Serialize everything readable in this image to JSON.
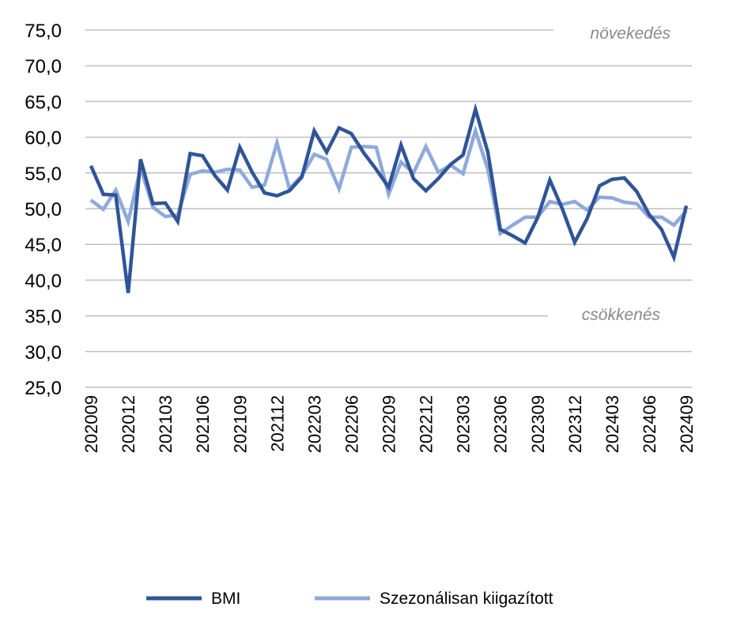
{
  "chart_data": {
    "type": "line",
    "ylim": [
      25,
      75
    ],
    "y_ticks": [
      "75,0",
      "70,0",
      "65,0",
      "60,0",
      "55,0",
      "50,0",
      "45,0",
      "40,0",
      "35,0",
      "30,0",
      "25,0"
    ],
    "x_tick_labels": [
      "202009",
      "202012",
      "202103",
      "202106",
      "202109",
      "202112",
      "202203",
      "202206",
      "202209",
      "202212",
      "202303",
      "202306",
      "202309",
      "202312",
      "202403",
      "202406",
      "202409"
    ],
    "categories": [
      "202009",
      "202010",
      "202011",
      "202012",
      "202101",
      "202102",
      "202103",
      "202104",
      "202105",
      "202106",
      "202107",
      "202108",
      "202109",
      "202110",
      "202111",
      "202112",
      "202201",
      "202202",
      "202203",
      "202204",
      "202205",
      "202206",
      "202207",
      "202208",
      "202209",
      "202210",
      "202211",
      "202212",
      "202301",
      "202302",
      "202303",
      "202304",
      "202305",
      "202306",
      "202307",
      "202308",
      "202309",
      "202310",
      "202311",
      "202312",
      "202401",
      "202402",
      "202403",
      "202404",
      "202405",
      "202406",
      "202407",
      "202408",
      "202409"
    ],
    "grid": true,
    "legend_position": "bottom",
    "annotations": {
      "upper": "növekedés",
      "lower": "csökkenés"
    },
    "series": [
      {
        "name": "BMI",
        "color": "#2f5597",
        "values": [
          56.0,
          52.0,
          51.9,
          38.2,
          56.9,
          50.7,
          50.8,
          48.2,
          57.7,
          57.4,
          54.6,
          52.6,
          58.6,
          55.1,
          52.2,
          51.8,
          52.5,
          54.4,
          60.9,
          57.9,
          61.3,
          60.5,
          57.8,
          55.5,
          53.0,
          58.9,
          54.2,
          52.5,
          54.2,
          56.2,
          57.5,
          63.9,
          57.9,
          47.1,
          46.2,
          45.2,
          48.7,
          54.0,
          50.0,
          45.3,
          48.6,
          53.2,
          54.1,
          54.3,
          52.4,
          49.2,
          47.1,
          43.2,
          50.4
        ]
      },
      {
        "name": "Szezonálisan kiigazított",
        "color": "#8fa9dc",
        "values": [
          51.2,
          49.9,
          52.6,
          48.2,
          55.7,
          50.2,
          48.9,
          49.1,
          54.8,
          55.3,
          55.1,
          55.5,
          55.4,
          53.0,
          53.3,
          59.2,
          52.8,
          54.6,
          57.6,
          56.9,
          52.8,
          58.6,
          58.7,
          58.6,
          52.0,
          56.5,
          55.0,
          58.7,
          55.1,
          56.1,
          54.9,
          60.9,
          55.5,
          46.5,
          47.7,
          48.8,
          48.8,
          51.0,
          50.6,
          51.0,
          49.8,
          51.6,
          51.5,
          50.9,
          50.7,
          48.8,
          48.8,
          47.7,
          49.7
        ]
      }
    ]
  }
}
